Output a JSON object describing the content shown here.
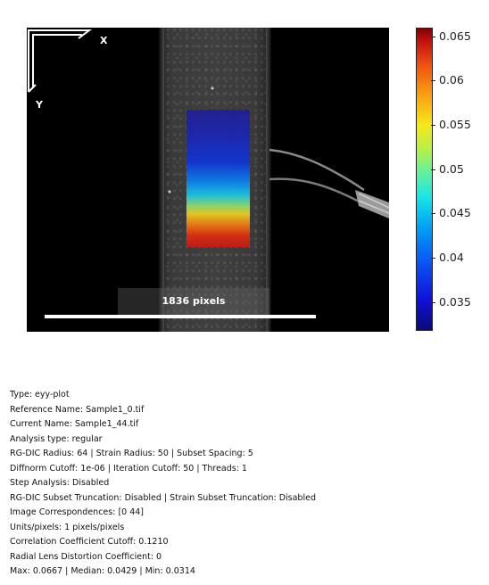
{
  "figure": {
    "axis_x_label": "X",
    "axis_y_label": "Y",
    "scale_bar_text": "1836 pixels"
  },
  "colorbar": {
    "ticks": [
      "0.065",
      "0.06",
      "0.055",
      "0.05",
      "0.045",
      "0.04",
      "0.035"
    ],
    "min_color": "#0b0b78",
    "max_color": "#820000",
    "colormap": "jet"
  },
  "info": {
    "type": "Type: eyy-plot",
    "reference_name": "Reference Name: Sample1_0.tif",
    "current_name": "Current Name: Sample1_44.tif",
    "analysis_type": "Analysis type: regular",
    "rgdic_params": "RG-DIC Radius: 64 | Strain Radius: 50 | Subset Spacing: 5",
    "cutoffs": "Diffnorm Cutoff: 1e-06 | Iteration Cutoff: 50 | Threads: 1",
    "step_analysis": "Step Analysis: Disabled",
    "truncation": "RG-DIC Subset Truncation: Disabled | Strain Subset Truncation: Disabled",
    "correspondences": "Image Correspondences: [0 44]",
    "units": "Units/pixels: 1 pixels/pixels",
    "cc_cutoff": "Correlation Coefficient Cutoff: 0.1210",
    "lens_distortion": "Radial Lens Distortion Coefficient: 0",
    "stats": "Max: 0.0667 | Median: 0.0429 | Min: 0.0314"
  }
}
